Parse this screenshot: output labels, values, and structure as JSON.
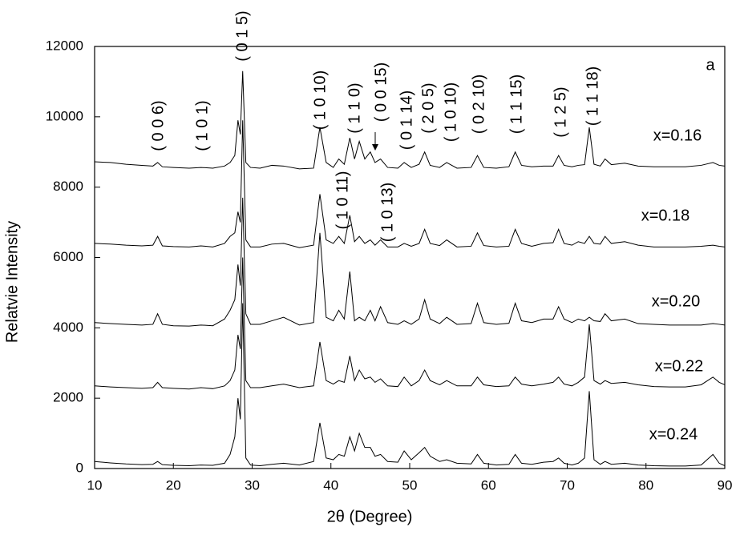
{
  "chart_data": {
    "type": "line",
    "x_label": "2θ (Degree)",
    "y_label": "Relatvie Intensity",
    "xlim": [
      10,
      90
    ],
    "xticks": [
      10,
      20,
      30,
      40,
      50,
      60,
      70,
      80,
      90
    ],
    "ylim": [
      0,
      12000
    ],
    "yticks": [
      0,
      2000,
      4000,
      6000,
      8000,
      10000,
      12000
    ],
    "panel_label": "a",
    "annotations": [
      "( 0 0 6)",
      "( 1 0 1)",
      "( 0 1 5)",
      "( 1 0 10)",
      "( 1 1 0)",
      "( 0 0 15)",
      "( 0 1 14)",
      "( 2 0 5)",
      "( 1 0 10)",
      "( 0 2 10)",
      "( 1 1 15)",
      "( 1 2 5)",
      "( 1 1 18)",
      "( 1 0 11)",
      "( 1 0 13)"
    ],
    "x": [
      10,
      12,
      14,
      16,
      17.4,
      18,
      18.6,
      20,
      22,
      23.5,
      25,
      26.5,
      27.2,
      27.8,
      28.2,
      28.5,
      28.8,
      29.2,
      29.8,
      31,
      32.5,
      34,
      36,
      37.8,
      38.6,
      39.4,
      40.3,
      41,
      41.7,
      42.4,
      43,
      43.6,
      44.3,
      45,
      45.6,
      46.3,
      47.2,
      48.5,
      49.3,
      50.2,
      51.2,
      51.9,
      52.6,
      53.8,
      54.7,
      56,
      57.8,
      58.6,
      59.4,
      61,
      62.6,
      63.4,
      64.2,
      65.5,
      67,
      68.2,
      68.9,
      69.6,
      70.6,
      71.4,
      72.2,
      72.8,
      73.4,
      74.2,
      74.8,
      75.6,
      77.3,
      79,
      81,
      83,
      85,
      87,
      88.5,
      89.3,
      90
    ],
    "series": [
      {
        "name": "x=0.16",
        "color": "#000000",
        "values": [
          8720,
          8700,
          8650,
          8620,
          8600,
          8700,
          8580,
          8560,
          8540,
          8560,
          8540,
          8600,
          8700,
          8900,
          9900,
          9500,
          11300,
          8700,
          8560,
          8540,
          8620,
          8600,
          8520,
          8540,
          9700,
          8700,
          8560,
          8800,
          8650,
          9400,
          8800,
          9300,
          8800,
          9000,
          8700,
          8800,
          8560,
          8540,
          8700,
          8560,
          8650,
          9000,
          8620,
          8560,
          8700,
          8540,
          8560,
          8900,
          8560,
          8540,
          8580,
          9000,
          8620,
          8580,
          8600,
          8600,
          8900,
          8620,
          8580,
          8620,
          8640,
          9700,
          8650,
          8600,
          8800,
          8640,
          8680,
          8600,
          8580,
          8580,
          8580,
          8620,
          8700,
          8620,
          8600
        ]
      },
      {
        "name": "x=0.18",
        "color": "#000000",
        "values": [
          6400,
          6380,
          6350,
          6330,
          6350,
          6600,
          6330,
          6310,
          6300,
          6330,
          6300,
          6400,
          6600,
          6700,
          7300,
          7000,
          9900,
          6500,
          6300,
          6300,
          6380,
          6400,
          6280,
          6350,
          7800,
          6500,
          6400,
          6600,
          6400,
          7200,
          6450,
          6600,
          6400,
          6500,
          6350,
          6500,
          6300,
          6300,
          6400,
          6320,
          6400,
          6800,
          6400,
          6340,
          6500,
          6300,
          6320,
          6700,
          6340,
          6300,
          6320,
          6800,
          6400,
          6320,
          6400,
          6420,
          6800,
          6400,
          6350,
          6450,
          6400,
          6600,
          6400,
          6380,
          6600,
          6400,
          6450,
          6350,
          6300,
          6300,
          6300,
          6320,
          6350,
          6320,
          6300
        ]
      },
      {
        "name": "x=0.20",
        "color": "#000000",
        "values": [
          4150,
          4120,
          4100,
          4080,
          4100,
          4400,
          4100,
          4060,
          4050,
          4080,
          4060,
          4250,
          4500,
          4800,
          5800,
          5200,
          7700,
          4400,
          4100,
          4100,
          4200,
          4300,
          4080,
          4150,
          6700,
          4300,
          4200,
          4500,
          4250,
          5600,
          4200,
          4300,
          4200,
          4500,
          4200,
          4600,
          4150,
          4100,
          4200,
          4100,
          4250,
          4800,
          4250,
          4120,
          4300,
          4100,
          4120,
          4700,
          4150,
          4100,
          4130,
          4700,
          4200,
          4150,
          4250,
          4250,
          4600,
          4250,
          4150,
          4250,
          4200,
          4300,
          4200,
          4180,
          4400,
          4200,
          4250,
          4120,
          4100,
          4080,
          4080,
          4080,
          4120,
          4100,
          4080
        ]
      },
      {
        "name": "x=0.22",
        "color": "#000000",
        "values": [
          2350,
          2320,
          2300,
          2280,
          2300,
          2450,
          2300,
          2280,
          2260,
          2300,
          2270,
          2350,
          2500,
          2800,
          3800,
          3400,
          6000,
          2500,
          2300,
          2300,
          2350,
          2400,
          2300,
          2350,
          3600,
          2500,
          2400,
          2500,
          2450,
          3200,
          2500,
          2800,
          2550,
          2600,
          2450,
          2550,
          2350,
          2330,
          2600,
          2350,
          2500,
          2800,
          2500,
          2380,
          2500,
          2350,
          2350,
          2600,
          2380,
          2330,
          2350,
          2600,
          2400,
          2350,
          2400,
          2450,
          2600,
          2400,
          2350,
          2450,
          2600,
          4100,
          2500,
          2400,
          2500,
          2420,
          2450,
          2380,
          2330,
          2320,
          2320,
          2380,
          2600,
          2450,
          2380
        ]
      },
      {
        "name": "x=0.24",
        "color": "#000000",
        "values": [
          200,
          160,
          130,
          110,
          120,
          200,
          110,
          90,
          80,
          100,
          90,
          150,
          400,
          900,
          2000,
          1400,
          4700,
          300,
          100,
          80,
          120,
          150,
          100,
          200,
          1300,
          300,
          250,
          400,
          350,
          900,
          500,
          1000,
          600,
          600,
          350,
          400,
          200,
          180,
          500,
          250,
          450,
          600,
          350,
          200,
          250,
          150,
          130,
          400,
          150,
          100,
          120,
          400,
          150,
          120,
          180,
          200,
          300,
          150,
          100,
          150,
          300,
          2200,
          250,
          120,
          200,
          120,
          150,
          100,
          80,
          70,
          70,
          100,
          400,
          150,
          80
        ]
      }
    ]
  }
}
